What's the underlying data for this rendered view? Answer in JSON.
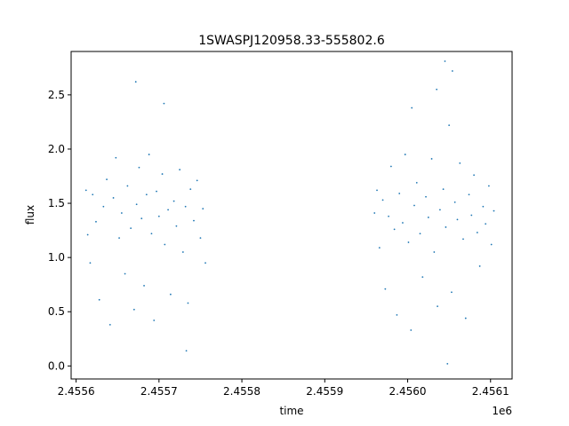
{
  "chart_data": {
    "type": "scatter",
    "title": "1SWASPJ120958.33-555802.6",
    "xlabel": "time",
    "ylabel": "flux",
    "x_offset_label": "1e6",
    "xlim": [
      2455594,
      2456126
    ],
    "ylim": [
      -0.12,
      2.9
    ],
    "x_ticks": [
      2455600,
      2455700,
      2455800,
      2455900,
      2456000,
      2456100
    ],
    "x_tick_labels": [
      "2.4556",
      "2.4557",
      "2.4558",
      "2.4559",
      "2.4560",
      "2.4561"
    ],
    "y_ticks": [
      0.0,
      0.5,
      1.0,
      1.5,
      2.0,
      2.5
    ],
    "y_tick_labels": [
      "0.0",
      "0.5",
      "1.0",
      "1.5",
      "2.0",
      "2.5"
    ],
    "grid": false,
    "marker_color": "#1f77b4",
    "series": [
      {
        "points": [
          [
            2455612,
            1.62
          ],
          [
            2455614,
            1.21
          ],
          [
            2455617,
            0.95
          ],
          [
            2455620,
            1.58
          ],
          [
            2455624,
            1.33
          ],
          [
            2455628,
            0.61
          ],
          [
            2455633,
            1.47
          ],
          [
            2455637,
            1.72
          ],
          [
            2455641,
            0.38
          ],
          [
            2455645,
            1.55
          ],
          [
            2455648,
            1.92
          ],
          [
            2455652,
            1.18
          ],
          [
            2455655,
            1.41
          ],
          [
            2455659,
            0.85
          ],
          [
            2455662,
            1.66
          ],
          [
            2455666,
            1.27
          ],
          [
            2455670,
            0.52
          ],
          [
            2455673,
            1.49
          ],
          [
            2455676,
            1.83
          ],
          [
            2455679,
            1.36
          ],
          [
            2455682,
            0.74
          ],
          [
            2455685,
            1.58
          ],
          [
            2455688,
            1.95
          ],
          [
            2455691,
            1.22
          ],
          [
            2455694,
            0.42
          ],
          [
            2455697,
            1.61
          ],
          [
            2455700,
            1.38
          ],
          [
            2455704,
            1.77
          ],
          [
            2455707,
            1.12
          ],
          [
            2455711,
            1.44
          ],
          [
            2455714,
            0.66
          ],
          [
            2455718,
            1.52
          ],
          [
            2455721,
            1.29
          ],
          [
            2455725,
            1.81
          ],
          [
            2455729,
            1.05
          ],
          [
            2455732,
            1.47
          ],
          [
            2455735,
            0.58
          ],
          [
            2455738,
            1.63
          ],
          [
            2455742,
            1.34
          ],
          [
            2455746,
            1.71
          ],
          [
            2455750,
            1.18
          ],
          [
            2455753,
            1.45
          ],
          [
            2455756,
            0.95
          ],
          [
            2455960,
            1.41
          ],
          [
            2455963,
            1.62
          ],
          [
            2455966,
            1.09
          ],
          [
            2455970,
            1.53
          ],
          [
            2455973,
            0.71
          ],
          [
            2455977,
            1.38
          ],
          [
            2455980,
            1.84
          ],
          [
            2455984,
            1.26
          ],
          [
            2455987,
            0.47
          ],
          [
            2455990,
            1.59
          ],
          [
            2455994,
            1.32
          ],
          [
            2455997,
            1.95
          ],
          [
            2456001,
            1.14
          ],
          [
            2456004,
            0.33
          ],
          [
            2456008,
            1.48
          ],
          [
            2456011,
            1.69
          ],
          [
            2456015,
            1.22
          ],
          [
            2456018,
            0.82
          ],
          [
            2456022,
            1.56
          ],
          [
            2456025,
            1.37
          ],
          [
            2456029,
            1.91
          ],
          [
            2456032,
            1.05
          ],
          [
            2456036,
            0.55
          ],
          [
            2456039,
            1.44
          ],
          [
            2456043,
            1.63
          ],
          [
            2456046,
            1.28
          ],
          [
            2456050,
            2.22
          ],
          [
            2456053,
            0.68
          ],
          [
            2456057,
            1.51
          ],
          [
            2456060,
            1.35
          ],
          [
            2456063,
            1.87
          ],
          [
            2456067,
            1.17
          ],
          [
            2456070,
            0.44
          ],
          [
            2456074,
            1.58
          ],
          [
            2456077,
            1.39
          ],
          [
            2456080,
            1.76
          ],
          [
            2456084,
            1.23
          ],
          [
            2456087,
            0.92
          ],
          [
            2456091,
            1.47
          ],
          [
            2456094,
            1.31
          ],
          [
            2456098,
            1.66
          ],
          [
            2456101,
            1.12
          ],
          [
            2456104,
            1.43
          ],
          [
            2455672,
            2.62
          ],
          [
            2455706,
            2.42
          ],
          [
            2456045,
            2.81
          ],
          [
            2456054,
            2.72
          ],
          [
            2456035,
            2.55
          ],
          [
            2456005,
            2.38
          ],
          [
            2456048,
            0.02
          ],
          [
            2455733,
            0.14
          ]
        ]
      }
    ]
  }
}
